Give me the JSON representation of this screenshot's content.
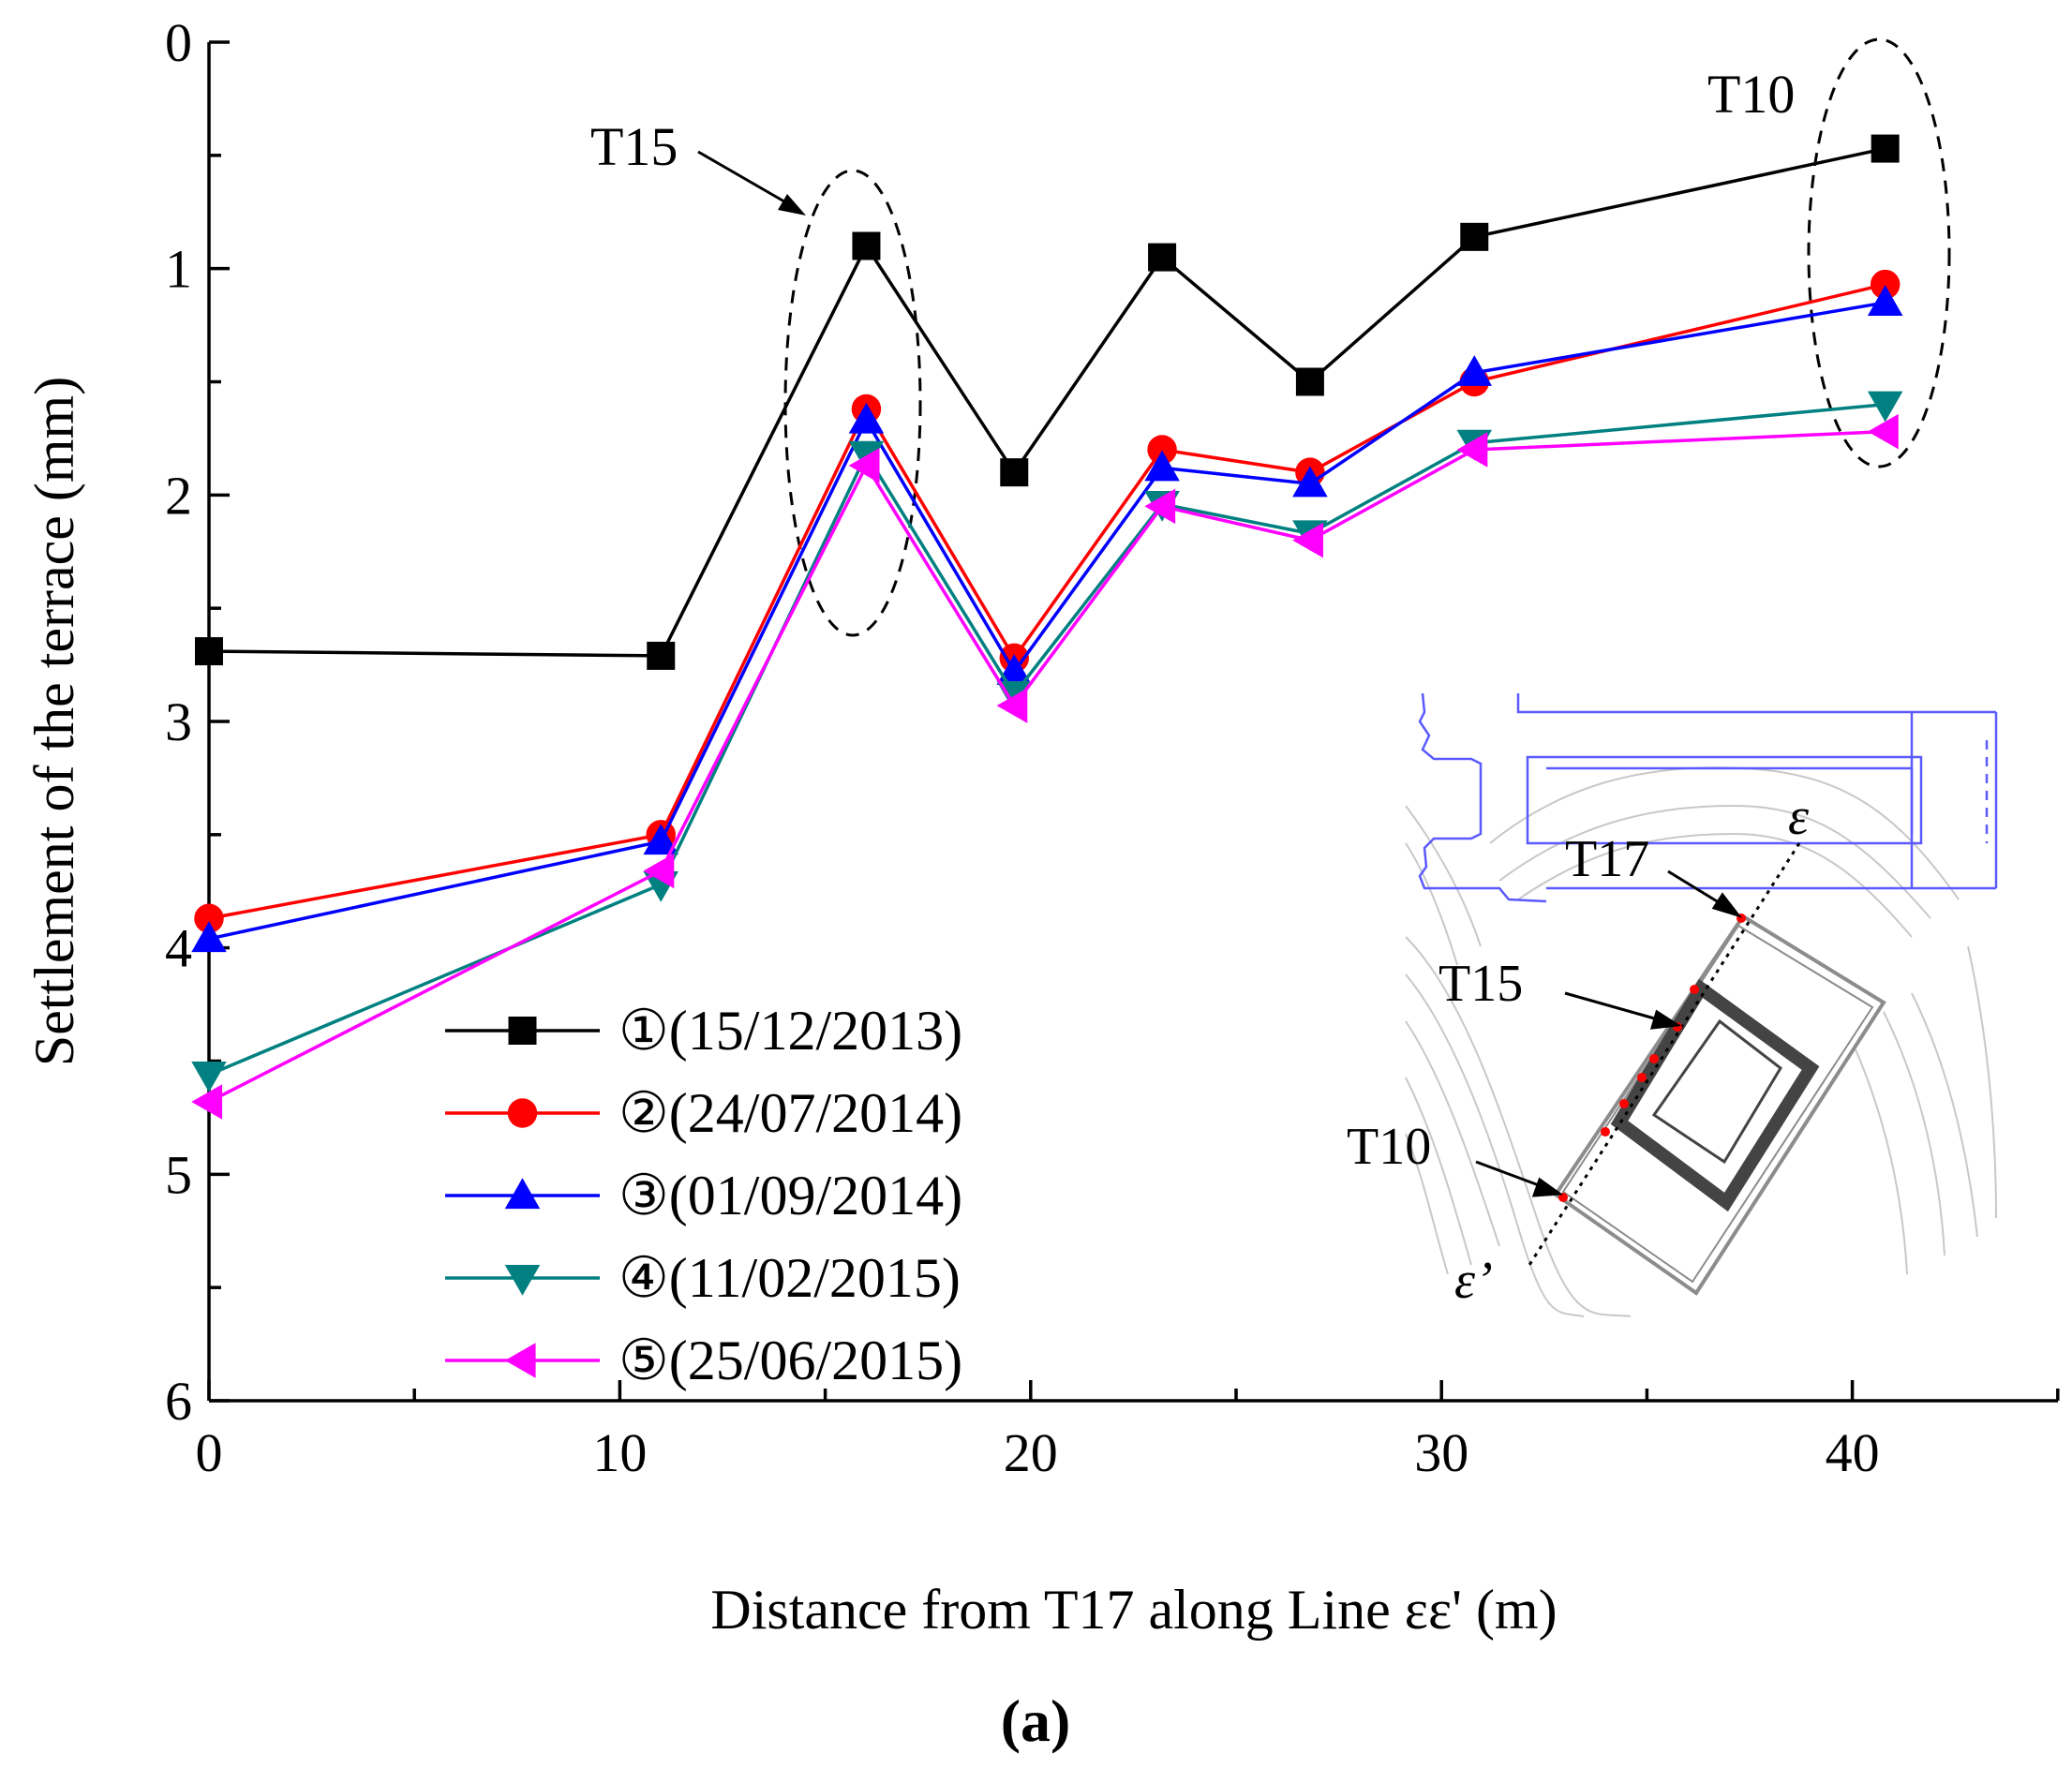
{
  "chart_data": {
    "type": "line",
    "xlabel": "Distance from T17 along Line εε' (m)",
    "ylabel": "Settlement of the terrace (mm)",
    "xlim": [
      0,
      45
    ],
    "ylim": [
      0,
      6
    ],
    "y_inverted": true,
    "x_ticks": [
      "0",
      "10",
      "20",
      "30",
      "40"
    ],
    "y_ticks": [
      "0",
      "1",
      "2",
      "3",
      "4",
      "5",
      "6"
    ],
    "x": [
      0,
      11,
      16,
      19.6,
      23.2,
      26.8,
      30.8,
      40.8
    ],
    "series": [
      {
        "name": "①(15/12/2013)",
        "color": "#000000",
        "marker": "square",
        "values": [
          2.69,
          2.71,
          0.9,
          1.9,
          0.95,
          1.5,
          0.86,
          0.47
        ]
      },
      {
        "name": "②(24/07/2014)",
        "color": "#ff0000",
        "marker": "circle",
        "values": [
          3.87,
          3.5,
          1.62,
          2.72,
          1.8,
          1.9,
          1.5,
          1.07
        ]
      },
      {
        "name": "③(01/09/2014)",
        "color": "#0000ff",
        "marker": "triangle-up",
        "values": [
          3.96,
          3.53,
          1.67,
          2.78,
          1.88,
          1.95,
          1.46,
          1.15
        ]
      },
      {
        "name": "④(11/02/2015)",
        "color": "#008080",
        "marker": "triangle-down",
        "values": [
          4.56,
          3.72,
          1.82,
          2.88,
          2.04,
          2.17,
          1.77,
          1.6
        ]
      },
      {
        "name": "⑤(25/06/2015)",
        "color": "#ff00ff",
        "marker": "triangle-left",
        "values": [
          4.68,
          3.66,
          1.87,
          2.93,
          2.05,
          2.2,
          1.8,
          1.72
        ]
      }
    ],
    "annotations": [
      "T15",
      "T10"
    ],
    "inset_labels": [
      "T17",
      "T15",
      "T10",
      "ε",
      "ε’"
    ],
    "caption": "(a)"
  }
}
